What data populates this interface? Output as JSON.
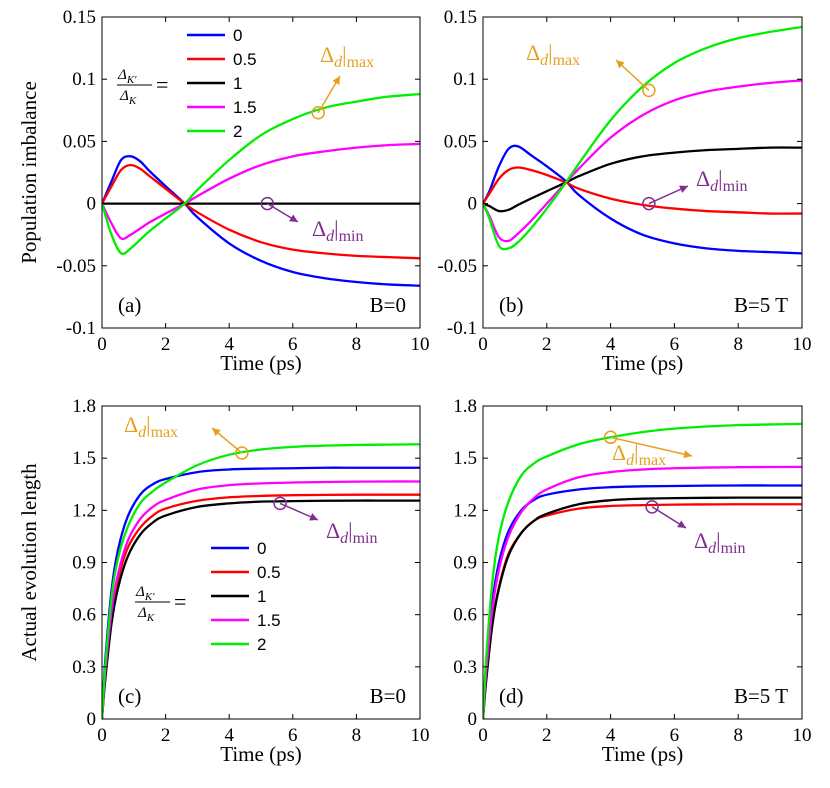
{
  "chart_data": [
    {
      "type": "line",
      "panel_label": "(a)",
      "field_label": "B=0",
      "xlabel": "Time (ps)",
      "ylabel": "Population imbalance",
      "xlim": [
        0,
        10
      ],
      "ylim": [
        -0.1,
        0.15
      ],
      "xticks": [
        "0",
        "2",
        "4",
        "6",
        "8",
        "10"
      ],
      "yticks": [
        "-0.1",
        "-0.05",
        "0",
        "0.05",
        "0.1",
        "0.15"
      ],
      "legend": {
        "position": "top-left",
        "ratio_label": "Δ_K′ / Δ_K =",
        "entries": [
          "0",
          "0.5",
          "1",
          "1.5",
          "2"
        ]
      },
      "series": [
        {
          "name": "0",
          "color": "#0000ff",
          "x": [
            0,
            0.3,
            0.6,
            0.9,
            1.2,
            1.5,
            2,
            2.6,
            3,
            4,
            5,
            6,
            7,
            8,
            9,
            10
          ],
          "values": [
            0,
            0.018,
            0.035,
            0.038,
            0.034,
            0.026,
            0.014,
            0,
            -0.011,
            -0.032,
            -0.046,
            -0.055,
            -0.06,
            -0.063,
            -0.065,
            -0.066
          ]
        },
        {
          "name": "0.5",
          "color": "#ff0000",
          "x": [
            0,
            0.3,
            0.6,
            0.9,
            1.2,
            1.5,
            2,
            2.6,
            3,
            4,
            5,
            6,
            7,
            8,
            9,
            10
          ],
          "values": [
            0,
            0.014,
            0.027,
            0.031,
            0.028,
            0.022,
            0.012,
            0,
            -0.007,
            -0.021,
            -0.031,
            -0.037,
            -0.04,
            -0.042,
            -0.043,
            -0.044
          ]
        },
        {
          "name": "1",
          "color": "#000000",
          "x": [
            0,
            2,
            4,
            6,
            8,
            10
          ],
          "values": [
            0,
            0,
            0,
            0,
            0,
            0
          ]
        },
        {
          "name": "1.5",
          "color": "#ff00ff",
          "x": [
            0,
            0.3,
            0.6,
            0.9,
            1.2,
            1.5,
            2,
            2.6,
            3,
            4,
            5,
            6,
            7,
            8,
            9,
            10
          ],
          "values": [
            0,
            -0.016,
            -0.028,
            -0.025,
            -0.02,
            -0.015,
            -0.008,
            0,
            0.006,
            0.02,
            0.031,
            0.038,
            0.042,
            0.045,
            0.047,
            0.048
          ]
        },
        {
          "name": "2",
          "color": "#00ee00",
          "x": [
            0,
            0.3,
            0.6,
            0.9,
            1.2,
            1.5,
            2,
            2.6,
            3,
            4,
            5,
            6,
            7,
            8,
            9,
            10
          ],
          "values": [
            0,
            -0.025,
            -0.04,
            -0.036,
            -0.029,
            -0.022,
            -0.012,
            0,
            0.011,
            0.035,
            0.055,
            0.068,
            0.077,
            0.082,
            0.086,
            0.088
          ]
        }
      ],
      "annotations": [
        {
          "text": "Δd|max",
          "color": "#e6a020",
          "at": [
            6.8,
            0.073
          ]
        },
        {
          "text": "Δd|min",
          "color": "#7e2f8e",
          "at": [
            5.2,
            0
          ]
        }
      ]
    },
    {
      "type": "line",
      "panel_label": "(b)",
      "field_label": "B=5 T",
      "xlabel": "Time (ps)",
      "ylabel": "",
      "xlim": [
        0,
        10
      ],
      "ylim": [
        -0.1,
        0.15
      ],
      "xticks": [
        "0",
        "2",
        "4",
        "6",
        "8",
        "10"
      ],
      "yticks": [
        "-0.1",
        "-0.05",
        "0",
        "0.05",
        "0.1",
        "0.15"
      ],
      "series": [
        {
          "name": "0",
          "color": "#0000ff",
          "x": [
            0,
            0.2,
            0.5,
            0.8,
            1.1,
            1.5,
            2,
            2.6,
            3,
            4,
            5,
            6,
            7,
            8,
            9,
            10
          ],
          "values": [
            0,
            0.01,
            0.03,
            0.044,
            0.046,
            0.039,
            0.03,
            0.018,
            0.007,
            -0.012,
            -0.025,
            -0.032,
            -0.036,
            -0.038,
            -0.039,
            -0.04
          ]
        },
        {
          "name": "0.5",
          "color": "#ff0000",
          "x": [
            0,
            0.2,
            0.5,
            0.8,
            1.1,
            1.5,
            2,
            2.6,
            3,
            4,
            5,
            6,
            7,
            8,
            9,
            10
          ],
          "values": [
            0,
            0.008,
            0.02,
            0.027,
            0.029,
            0.027,
            0.023,
            0.017,
            0.012,
            0.004,
            -0.001,
            -0.004,
            -0.006,
            -0.007,
            -0.008,
            -0.008
          ]
        },
        {
          "name": "1",
          "color": "#000000",
          "x": [
            0,
            0.2,
            0.5,
            0.8,
            1.1,
            1.5,
            2,
            2.6,
            3,
            4,
            5,
            6,
            7,
            8,
            9,
            10
          ],
          "values": [
            0,
            -0.002,
            -0.006,
            -0.005,
            -0.001,
            0.004,
            0.01,
            0.017,
            0.022,
            0.032,
            0.038,
            0.041,
            0.043,
            0.044,
            0.045,
            0.045
          ]
        },
        {
          "name": "1.5",
          "color": "#ff00ff",
          "x": [
            0,
            0.2,
            0.5,
            0.8,
            1.1,
            1.5,
            2,
            2.6,
            3,
            4,
            5,
            6,
            7,
            8,
            9,
            10
          ],
          "values": [
            0,
            -0.01,
            -0.027,
            -0.03,
            -0.024,
            -0.014,
            0,
            0.017,
            0.028,
            0.053,
            0.071,
            0.083,
            0.09,
            0.094,
            0.097,
            0.099
          ]
        },
        {
          "name": "2",
          "color": "#00ee00",
          "x": [
            0,
            0.2,
            0.5,
            0.8,
            1.1,
            1.5,
            2,
            2.6,
            3,
            4,
            5,
            6,
            7,
            8,
            9,
            10
          ],
          "values": [
            0,
            -0.012,
            -0.034,
            -0.036,
            -0.031,
            -0.02,
            -0.004,
            0.017,
            0.032,
            0.067,
            0.094,
            0.113,
            0.125,
            0.133,
            0.138,
            0.142
          ]
        }
      ],
      "annotations": [
        {
          "text": "Δd|max",
          "color": "#e6a020",
          "at": [
            5.2,
            0.091
          ]
        },
        {
          "text": "Δd|min",
          "color": "#7e2f8e",
          "at": [
            5.2,
            0
          ]
        }
      ]
    },
    {
      "type": "line",
      "panel_label": "(c)",
      "field_label": "B=0",
      "xlabel": "Time (ps)",
      "ylabel": "Actual evolution length",
      "xlim": [
        0,
        10
      ],
      "ylim": [
        0,
        1.8
      ],
      "xticks": [
        "0",
        "2",
        "4",
        "6",
        "8",
        "10"
      ],
      "yticks": [
        "0",
        "0.3",
        "0.6",
        "0.9",
        "1.2",
        "1.5",
        "1.8"
      ],
      "legend": {
        "position": "center",
        "ratio_label": "Δ_K′ / Δ_K =",
        "entries": [
          "0",
          "0.5",
          "1",
          "1.5",
          "2"
        ]
      },
      "series": [
        {
          "name": "0",
          "color": "#0000ff",
          "x": [
            0,
            0.1,
            0.3,
            0.5,
            0.8,
            1.2,
            1.6,
            2,
            3,
            4,
            5,
            6,
            7,
            8,
            9,
            10
          ],
          "values": [
            0,
            0.33,
            0.74,
            0.97,
            1.16,
            1.29,
            1.35,
            1.38,
            1.42,
            1.435,
            1.44,
            1.442,
            1.445,
            1.445,
            1.445,
            1.445
          ]
        },
        {
          "name": "0.5",
          "color": "#ff0000",
          "x": [
            0,
            0.1,
            0.3,
            0.5,
            0.8,
            1.2,
            1.6,
            2,
            3,
            4,
            5,
            6,
            7,
            8,
            9,
            10
          ],
          "values": [
            0,
            0.25,
            0.6,
            0.8,
            0.98,
            1.1,
            1.17,
            1.21,
            1.255,
            1.275,
            1.283,
            1.287,
            1.289,
            1.29,
            1.29,
            1.29
          ]
        },
        {
          "name": "1",
          "color": "#000000",
          "x": [
            0,
            0.1,
            0.3,
            0.5,
            0.8,
            1.2,
            1.6,
            2,
            3,
            4,
            5,
            6,
            7,
            8,
            9,
            10
          ],
          "values": [
            0,
            0.22,
            0.55,
            0.75,
            0.93,
            1.06,
            1.13,
            1.17,
            1.22,
            1.24,
            1.25,
            1.253,
            1.255,
            1.256,
            1.256,
            1.256
          ]
        },
        {
          "name": "1.5",
          "color": "#ff00ff",
          "x": [
            0,
            0.1,
            0.3,
            0.5,
            0.8,
            1.2,
            1.6,
            2,
            3,
            4,
            5,
            6,
            7,
            8,
            9,
            10
          ],
          "values": [
            0,
            0.26,
            0.62,
            0.83,
            1.02,
            1.15,
            1.22,
            1.26,
            1.32,
            1.345,
            1.355,
            1.36,
            1.363,
            1.365,
            1.366,
            1.366
          ]
        },
        {
          "name": "2",
          "color": "#00ee00",
          "x": [
            0,
            0.1,
            0.3,
            0.5,
            0.8,
            1.2,
            1.6,
            2,
            3,
            4,
            5,
            6,
            7,
            8,
            9,
            10
          ],
          "values": [
            0,
            0.3,
            0.7,
            0.92,
            1.1,
            1.24,
            1.31,
            1.36,
            1.46,
            1.52,
            1.55,
            1.565,
            1.572,
            1.576,
            1.578,
            1.58
          ]
        }
      ],
      "annotations": [
        {
          "text": "Δd|max",
          "color": "#e6a020",
          "at": [
            4.4,
            1.53
          ]
        },
        {
          "text": "Δd|min",
          "color": "#7e2f8e",
          "at": [
            5.6,
            1.24
          ]
        }
      ]
    },
    {
      "type": "line",
      "panel_label": "(d)",
      "field_label": "B=5 T",
      "xlabel": "Time (ps)",
      "ylabel": "",
      "xlim": [
        0,
        10
      ],
      "ylim": [
        0,
        1.8
      ],
      "xticks": [
        "0",
        "2",
        "4",
        "6",
        "8",
        "10"
      ],
      "yticks": [
        "0",
        "0.3",
        "0.6",
        "0.9",
        "1.2",
        "1.5",
        "1.8"
      ],
      "series": [
        {
          "name": "0",
          "color": "#0000ff",
          "x": [
            0,
            0.1,
            0.3,
            0.5,
            0.8,
            1.2,
            1.6,
            2,
            3,
            4,
            5,
            6,
            7,
            8,
            9,
            10
          ],
          "values": [
            0,
            0.3,
            0.68,
            0.9,
            1.08,
            1.2,
            1.26,
            1.29,
            1.32,
            1.333,
            1.338,
            1.34,
            1.342,
            1.343,
            1.343,
            1.343
          ]
        },
        {
          "name": "0.5",
          "color": "#ff0000",
          "x": [
            0,
            0.1,
            0.3,
            0.5,
            0.8,
            1.2,
            1.6,
            2,
            3,
            4,
            5,
            6,
            7,
            8,
            9,
            10
          ],
          "values": [
            0,
            0.23,
            0.56,
            0.76,
            0.95,
            1.07,
            1.14,
            1.17,
            1.21,
            1.225,
            1.23,
            1.233,
            1.234,
            1.235,
            1.235,
            1.235
          ]
        },
        {
          "name": "1",
          "color": "#000000",
          "x": [
            0,
            0.1,
            0.3,
            0.5,
            0.8,
            1.2,
            1.6,
            2,
            3,
            4,
            5,
            6,
            7,
            8,
            9,
            10
          ],
          "values": [
            0,
            0.22,
            0.55,
            0.75,
            0.94,
            1.07,
            1.14,
            1.18,
            1.235,
            1.258,
            1.267,
            1.27,
            1.272,
            1.273,
            1.273,
            1.273
          ]
        },
        {
          "name": "1.5",
          "color": "#ff00ff",
          "x": [
            0,
            0.1,
            0.3,
            0.5,
            0.8,
            1.2,
            1.6,
            2,
            3,
            4,
            5,
            6,
            7,
            8,
            9,
            10
          ],
          "values": [
            0,
            0.27,
            0.64,
            0.86,
            1.05,
            1.19,
            1.27,
            1.32,
            1.39,
            1.42,
            1.435,
            1.442,
            1.446,
            1.448,
            1.449,
            1.45
          ]
        },
        {
          "name": "2",
          "color": "#00ee00",
          "x": [
            0,
            0.1,
            0.3,
            0.5,
            0.8,
            1.2,
            1.6,
            2,
            3,
            4,
            5,
            6,
            7,
            8,
            9,
            10
          ],
          "values": [
            0,
            0.35,
            0.8,
            1.05,
            1.25,
            1.4,
            1.47,
            1.51,
            1.58,
            1.62,
            1.65,
            1.67,
            1.682,
            1.69,
            1.694,
            1.697
          ]
        }
      ],
      "annotations": [
        {
          "text": "Δd|max",
          "color": "#e6a020",
          "at": [
            4.0,
            1.62
          ]
        },
        {
          "text": "Δd|min",
          "color": "#7e2f8e",
          "at": [
            5.3,
            1.22
          ]
        }
      ]
    }
  ]
}
